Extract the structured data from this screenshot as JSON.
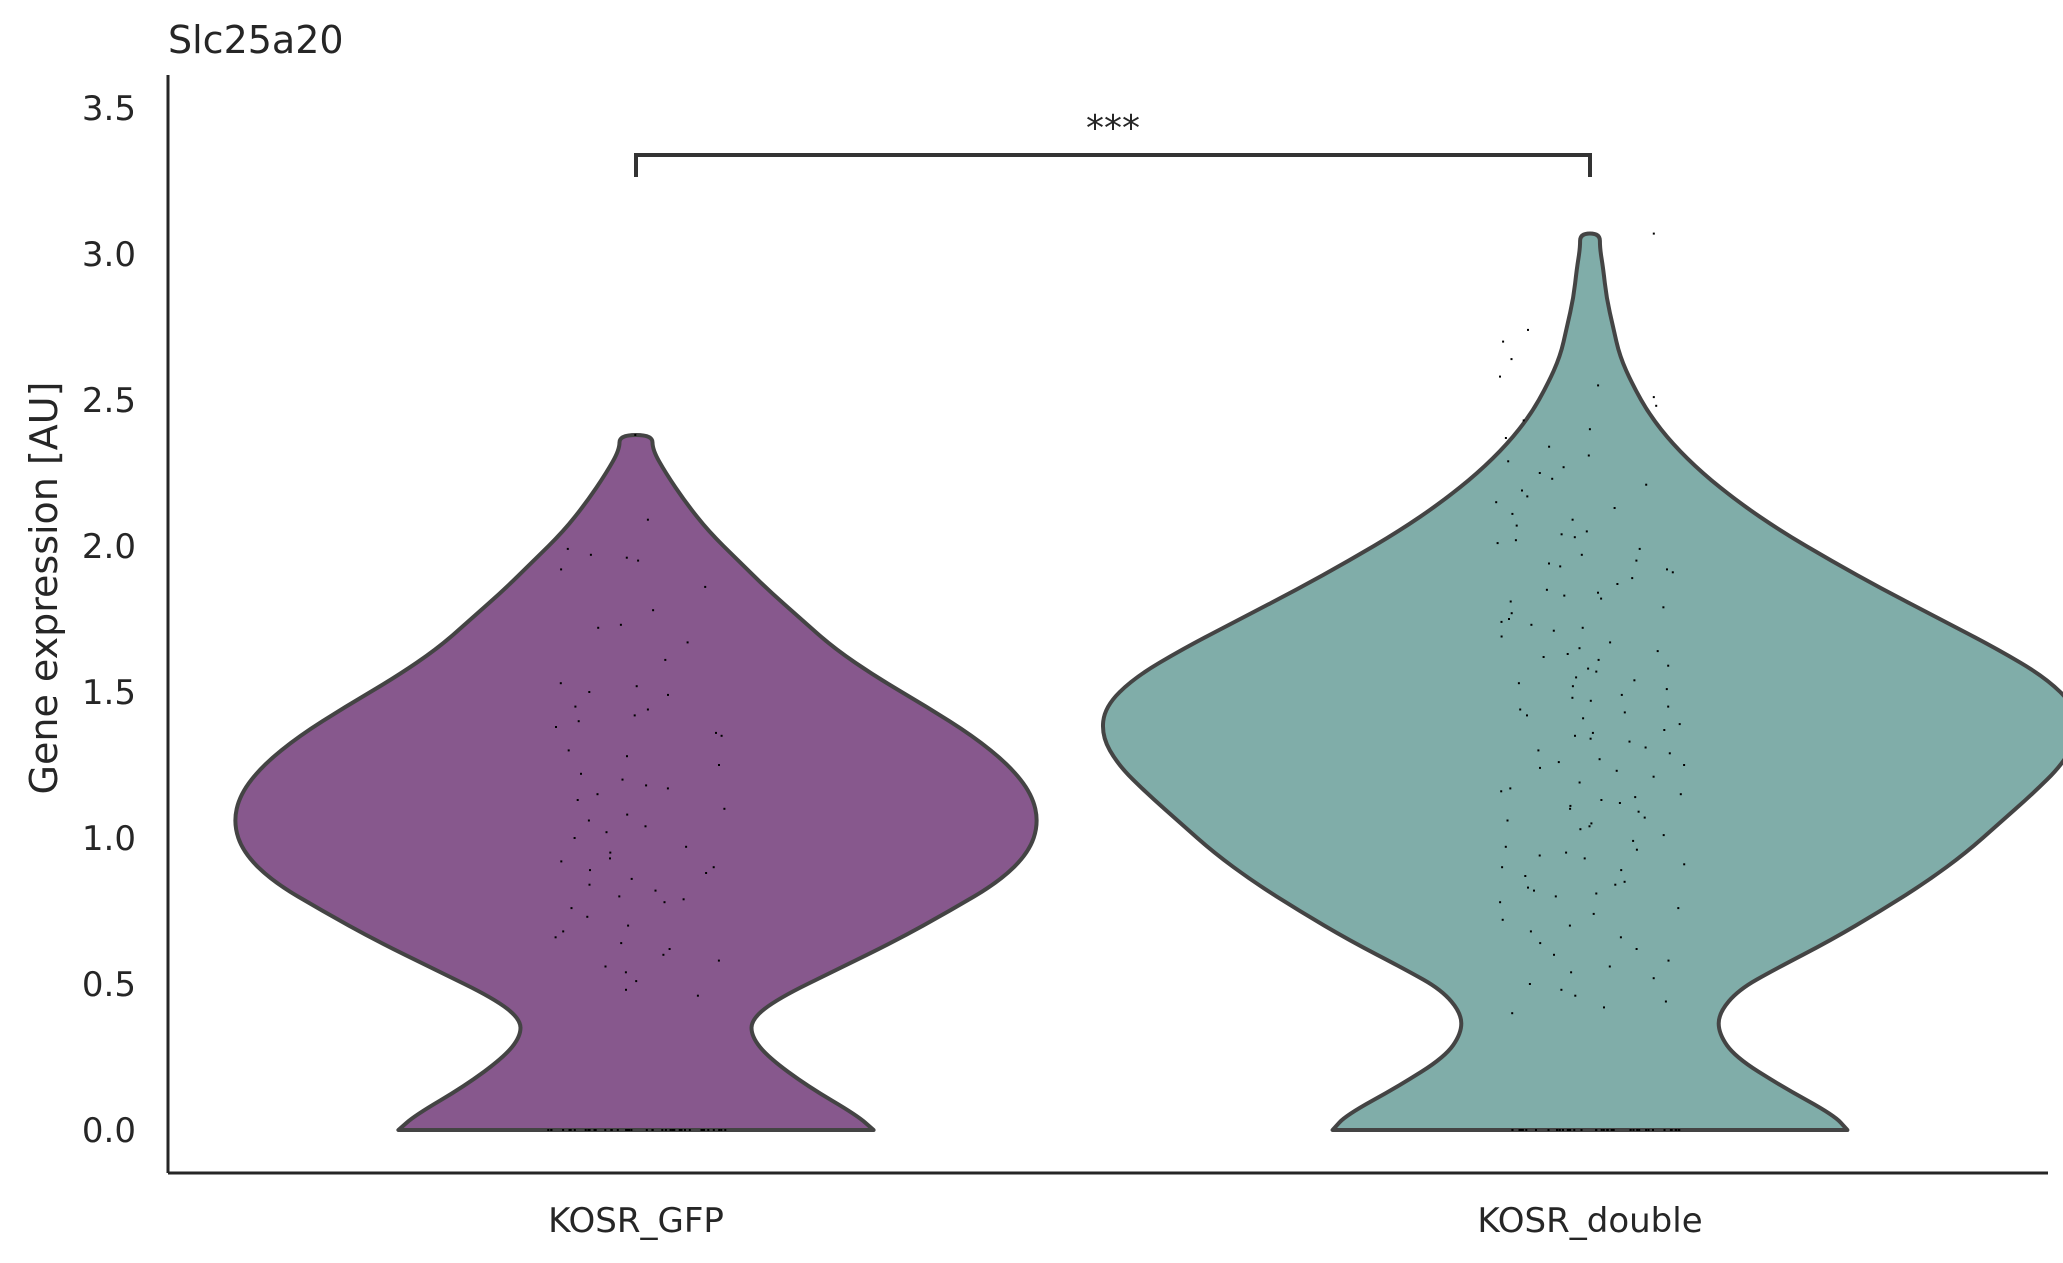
{
  "chart_data": {
    "type": "violin",
    "title": "Slc25a20",
    "xlabel": "",
    "ylabel": "Gene expression [AU]",
    "ylim": [
      -0.15,
      3.6
    ],
    "yticks": [
      0.0,
      0.5,
      1.0,
      1.5,
      2.0,
      2.5,
      3.0,
      3.5
    ],
    "ytick_labels": [
      "0.0",
      "0.5",
      "1.0",
      "1.5",
      "2.0",
      "2.5",
      "3.0",
      "3.5"
    ],
    "categories": [
      "KOSR_GFP",
      "KOSR_double"
    ],
    "colors": [
      "#87588d",
      "#80ada9"
    ],
    "grid": false,
    "significance": {
      "label": "***",
      "between": [
        "KOSR_GFP",
        "KOSR_double"
      ]
    },
    "violins": [
      {
        "name": "KOSR_GFP",
        "profile": [
          [
            0.0,
            0.72
          ],
          [
            0.05,
            0.67
          ],
          [
            0.15,
            0.52
          ],
          [
            0.25,
            0.4
          ],
          [
            0.32,
            0.35
          ],
          [
            0.38,
            0.35
          ],
          [
            0.45,
            0.43
          ],
          [
            0.55,
            0.61
          ],
          [
            0.65,
            0.79
          ],
          [
            0.75,
            0.95
          ],
          [
            0.85,
            1.1
          ],
          [
            0.95,
            1.19
          ],
          [
            1.05,
            1.22
          ],
          [
            1.15,
            1.2
          ],
          [
            1.25,
            1.13
          ],
          [
            1.35,
            1.02
          ],
          [
            1.45,
            0.88
          ],
          [
            1.55,
            0.73
          ],
          [
            1.65,
            0.6
          ],
          [
            1.75,
            0.5
          ],
          [
            1.85,
            0.4
          ],
          [
            1.95,
            0.31
          ],
          [
            2.05,
            0.22
          ],
          [
            2.15,
            0.15
          ],
          [
            2.25,
            0.09
          ],
          [
            2.33,
            0.05
          ],
          [
            2.38,
            0.05
          ]
        ],
        "max": 2.38,
        "points_y": [
          2.38,
          2.09,
          1.99,
          1.97,
          1.96,
          1.95,
          1.92,
          1.86,
          1.78,
          1.73,
          1.72,
          1.67,
          1.61,
          1.53,
          1.52,
          1.5,
          1.49,
          1.45,
          1.44,
          1.42,
          1.4,
          1.38,
          1.36,
          1.35,
          1.3,
          1.28,
          1.25,
          1.22,
          1.2,
          1.18,
          1.17,
          1.15,
          1.13,
          1.1,
          1.08,
          1.06,
          1.04,
          1.02,
          1.0,
          0.97,
          0.95,
          0.93,
          0.92,
          0.9,
          0.89,
          0.88,
          0.86,
          0.84,
          0.82,
          0.8,
          0.79,
          0.78,
          0.76,
          0.73,
          0.7,
          0.68,
          0.66,
          0.64,
          0.62,
          0.6,
          0.58,
          0.56,
          0.54,
          0.51,
          0.48,
          0.46
        ]
      },
      {
        "name": "KOSR_double",
        "profile": [
          [
            0.0,
            0.78
          ],
          [
            0.05,
            0.74
          ],
          [
            0.15,
            0.58
          ],
          [
            0.25,
            0.44
          ],
          [
            0.33,
            0.39
          ],
          [
            0.4,
            0.39
          ],
          [
            0.48,
            0.45
          ],
          [
            0.55,
            0.56
          ],
          [
            0.65,
            0.73
          ],
          [
            0.75,
            0.88
          ],
          [
            0.85,
            1.02
          ],
          [
            0.95,
            1.14
          ],
          [
            1.05,
            1.24
          ],
          [
            1.15,
            1.34
          ],
          [
            1.25,
            1.43
          ],
          [
            1.35,
            1.48
          ],
          [
            1.45,
            1.47
          ],
          [
            1.55,
            1.38
          ],
          [
            1.65,
            1.23
          ],
          [
            1.75,
            1.06
          ],
          [
            1.85,
            0.89
          ],
          [
            1.95,
            0.73
          ],
          [
            2.05,
            0.58
          ],
          [
            2.15,
            0.45
          ],
          [
            2.25,
            0.34
          ],
          [
            2.35,
            0.25
          ],
          [
            2.45,
            0.18
          ],
          [
            2.55,
            0.13
          ],
          [
            2.65,
            0.09
          ],
          [
            2.75,
            0.07
          ],
          [
            2.85,
            0.05
          ],
          [
            2.95,
            0.04
          ],
          [
            3.02,
            0.03
          ],
          [
            3.07,
            0.03
          ]
        ],
        "max": 3.07,
        "points_y": [
          3.07,
          2.74,
          2.7,
          2.64,
          2.58,
          2.55,
          2.51,
          2.48,
          2.43,
          2.4,
          2.37,
          2.34,
          2.31,
          2.29,
          2.27,
          2.25,
          2.23,
          2.21,
          2.19,
          2.17,
          2.15,
          2.13,
          2.11,
          2.09,
          2.07,
          2.05,
          2.03,
          2.01,
          1.99,
          1.97,
          1.95,
          1.93,
          1.91,
          1.89,
          1.87,
          1.85,
          1.83,
          1.81,
          1.79,
          1.77,
          1.75,
          1.73,
          1.71,
          1.69,
          1.67,
          1.65,
          1.63,
          1.61,
          1.59,
          1.57,
          1.55,
          1.53,
          1.51,
          1.49,
          1.47,
          1.45,
          1.43,
          1.41,
          1.39,
          1.37,
          1.35,
          1.34,
          1.33,
          1.31,
          1.29,
          1.27,
          1.25,
          1.23,
          1.21,
          1.19,
          1.17,
          1.15,
          1.13,
          1.12,
          1.11,
          1.09,
          1.07,
          1.05,
          1.03,
          1.01,
          0.99,
          0.97,
          0.95,
          0.93,
          0.91,
          0.89,
          0.87,
          0.85,
          0.83,
          0.82,
          0.81,
          0.8,
          0.78,
          0.76,
          0.74,
          0.72,
          0.7,
          0.68,
          0.66,
          0.64,
          0.62,
          0.6,
          0.58,
          0.56,
          0.54,
          0.52,
          0.5,
          0.48,
          0.46,
          0.44,
          0.42,
          0.4,
          1.42,
          1.58,
          1.62,
          1.48,
          1.36,
          1.26,
          1.16,
          1.06,
          0.96,
          1.72,
          1.82,
          1.92,
          2.02,
          1.52,
          1.3,
          1.1,
          0.9,
          1.44,
          1.54,
          1.64,
          1.74,
          1.84,
          1.94,
          2.04,
          1.24,
          1.14,
          1.04,
          0.94,
          0.84
        ]
      }
    ]
  }
}
